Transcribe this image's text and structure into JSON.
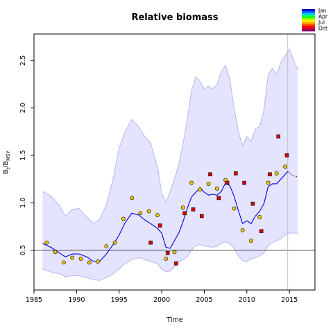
{
  "chart_data": {
    "type": "line",
    "title": "Relative biomass",
    "xlabel": "Time",
    "ylabel_main": "B",
    "ylabel_sub1": "t",
    "ylabel_mid": "/B",
    "ylabel_sub2": "MSY",
    "xlim": [
      1985,
      2018
    ],
    "ylim": [
      0.08,
      2.78
    ],
    "x_ticks": [
      1985,
      1990,
      1995,
      2000,
      2005,
      2010,
      2015
    ],
    "x_tick_labels": [
      "1985",
      "1990",
      "1995",
      "2000",
      "2005",
      "2010",
      "2015"
    ],
    "y_ticks": [
      0.5,
      1.0,
      1.5,
      2.0,
      2.5
    ],
    "y_tick_labels": [
      "0.5",
      "1.0",
      "1.5",
      "2.0",
      "2.5"
    ],
    "reference_line": 0.5,
    "vertical_line_x": 2014.8,
    "grid": false,
    "legend_position": "top-right",
    "legend": {
      "labels": [
        "Jan",
        "Apr",
        "Jul",
        "Oct"
      ],
      "colors": [
        "#0000CC",
        "#0055FF",
        "#00BBFF",
        "#00FF88",
        "#22FF00",
        "#AAFF00",
        "#FFEE00",
        "#FFAA00",
        "#FF5500",
        "#FF0000",
        "#CC0033",
        "#880066"
      ]
    },
    "colors": {
      "band_fill": "#E4E4FF",
      "band_edge": "#A8A8F0",
      "median_line": "#0000DD",
      "point_yellow": "#F0C800",
      "point_red": "#DD0000",
      "ref_line": "#555555",
      "vline": "#BBBBBB"
    },
    "band": {
      "x": [
        1986.0,
        1987.0,
        1988.0,
        1988.7,
        1989.5,
        1990.3,
        1991.2,
        1992.0,
        1992.7,
        1993.5,
        1994.3,
        1995.0,
        1995.7,
        1996.5,
        1997.3,
        1998.0,
        1998.7,
        1999.5,
        2000.0,
        2000.5,
        2001.0,
        2001.5,
        2002.0,
        2002.5,
        2003.0,
        2003.5,
        2004.0,
        2004.5,
        2005.0,
        2005.5,
        2006.0,
        2006.5,
        2007.0,
        2007.5,
        2008.0,
        2008.5,
        2009.0,
        2009.5,
        2010.0,
        2010.5,
        2011.0,
        2011.5,
        2012.0,
        2012.5,
        2013.0,
        2013.5,
        2014.0,
        2014.5,
        2015.0,
        2015.5,
        2016.0
      ],
      "upper": [
        1.12,
        1.07,
        0.97,
        0.86,
        0.93,
        0.94,
        0.85,
        0.78,
        0.82,
        0.98,
        1.25,
        1.58,
        1.75,
        1.88,
        1.8,
        1.7,
        1.63,
        1.38,
        1.1,
        1.0,
        1.12,
        1.25,
        1.4,
        1.62,
        1.88,
        2.18,
        2.33,
        2.28,
        2.2,
        2.23,
        2.2,
        2.25,
        2.38,
        2.45,
        2.3,
        2.0,
        1.75,
        1.6,
        1.7,
        1.65,
        1.78,
        1.8,
        1.98,
        2.35,
        2.42,
        2.35,
        2.48,
        2.55,
        2.62,
        2.5,
        2.4
      ],
      "lower": [
        0.3,
        0.27,
        0.25,
        0.22,
        0.23,
        0.23,
        0.21,
        0.19,
        0.18,
        0.21,
        0.25,
        0.3,
        0.36,
        0.4,
        0.42,
        0.4,
        0.38,
        0.36,
        0.3,
        0.27,
        0.28,
        0.33,
        0.38,
        0.4,
        0.43,
        0.5,
        0.55,
        0.56,
        0.54,
        0.54,
        0.53,
        0.54,
        0.57,
        0.59,
        0.57,
        0.52,
        0.44,
        0.39,
        0.38,
        0.41,
        0.42,
        0.44,
        0.47,
        0.55,
        0.58,
        0.6,
        0.62,
        0.66,
        0.68,
        0.68,
        0.68
      ]
    },
    "median": {
      "x": [
        1986.0,
        1987.0,
        1988.0,
        1988.7,
        1989.5,
        1990.3,
        1991.2,
        1992.0,
        1992.7,
        1993.5,
        1994.3,
        1995.0,
        1995.7,
        1996.5,
        1997.3,
        1998.0,
        1998.7,
        1999.5,
        2000.0,
        2000.5,
        2001.0,
        2001.5,
        2002.0,
        2002.5,
        2003.0,
        2003.5,
        2004.0,
        2004.5,
        2005.0,
        2005.5,
        2006.0,
        2006.5,
        2007.0,
        2007.5,
        2008.0,
        2008.5,
        2009.0,
        2009.5,
        2010.0,
        2010.5,
        2011.0,
        2011.5,
        2012.0,
        2012.5,
        2013.0,
        2013.5,
        2014.0,
        2014.5,
        2014.8
      ],
      "y": [
        0.57,
        0.53,
        0.47,
        0.43,
        0.46,
        0.46,
        0.43,
        0.38,
        0.38,
        0.46,
        0.56,
        0.66,
        0.79,
        0.89,
        0.87,
        0.82,
        0.78,
        0.73,
        0.68,
        0.53,
        0.52,
        0.6,
        0.68,
        0.8,
        0.94,
        1.06,
        1.11,
        1.16,
        1.11,
        1.08,
        1.09,
        1.08,
        1.12,
        1.21,
        1.18,
        1.07,
        0.92,
        0.78,
        0.81,
        0.78,
        0.86,
        0.91,
        0.99,
        1.17,
        1.2,
        1.2,
        1.25,
        1.3,
        1.33
      ]
    },
    "projection": {
      "x": [
        2014.8,
        2015.3,
        2016.0
      ],
      "y": [
        1.33,
        1.29,
        1.27
      ]
    },
    "points": [
      {
        "x": 1986.5,
        "y": 0.58,
        "c": "yellow"
      },
      {
        "x": 1987.5,
        "y": 0.48,
        "c": "yellow"
      },
      {
        "x": 1988.5,
        "y": 0.37,
        "c": "yellow"
      },
      {
        "x": 1989.5,
        "y": 0.42,
        "c": "yellow"
      },
      {
        "x": 1990.5,
        "y": 0.41,
        "c": "yellow"
      },
      {
        "x": 1991.5,
        "y": 0.37,
        "c": "yellow"
      },
      {
        "x": 1992.5,
        "y": 0.38,
        "c": "yellow"
      },
      {
        "x": 1993.5,
        "y": 0.54,
        "c": "yellow"
      },
      {
        "x": 1994.5,
        "y": 0.58,
        "c": "yellow"
      },
      {
        "x": 1995.5,
        "y": 0.83,
        "c": "yellow"
      },
      {
        "x": 1996.5,
        "y": 1.05,
        "c": "yellow"
      },
      {
        "x": 1997.5,
        "y": 0.89,
        "c": "yellow"
      },
      {
        "x": 1998.5,
        "y": 0.91,
        "c": "yellow"
      },
      {
        "x": 1998.7,
        "y": 0.58,
        "c": "red"
      },
      {
        "x": 1999.5,
        "y": 0.87,
        "c": "yellow"
      },
      {
        "x": 1999.8,
        "y": 0.76,
        "c": "red"
      },
      {
        "x": 2000.5,
        "y": 0.41,
        "c": "yellow"
      },
      {
        "x": 2000.7,
        "y": 0.47,
        "c": "red"
      },
      {
        "x": 2001.5,
        "y": 0.48,
        "c": "yellow"
      },
      {
        "x": 2001.7,
        "y": 0.36,
        "c": "red"
      },
      {
        "x": 2002.5,
        "y": 0.95,
        "c": "yellow"
      },
      {
        "x": 2002.7,
        "y": 0.89,
        "c": "red"
      },
      {
        "x": 2003.5,
        "y": 1.21,
        "c": "yellow"
      },
      {
        "x": 2003.7,
        "y": 0.93,
        "c": "red"
      },
      {
        "x": 2004.5,
        "y": 1.14,
        "c": "yellow"
      },
      {
        "x": 2004.7,
        "y": 0.86,
        "c": "red"
      },
      {
        "x": 2005.5,
        "y": 1.2,
        "c": "yellow"
      },
      {
        "x": 2005.7,
        "y": 1.3,
        "c": "red"
      },
      {
        "x": 2006.5,
        "y": 1.15,
        "c": "yellow"
      },
      {
        "x": 2006.7,
        "y": 1.05,
        "c": "red"
      },
      {
        "x": 2007.5,
        "y": 1.24,
        "c": "yellow"
      },
      {
        "x": 2007.7,
        "y": 1.21,
        "c": "red"
      },
      {
        "x": 2008.5,
        "y": 0.94,
        "c": "yellow"
      },
      {
        "x": 2008.7,
        "y": 1.31,
        "c": "red"
      },
      {
        "x": 2009.5,
        "y": 0.71,
        "c": "yellow"
      },
      {
        "x": 2009.7,
        "y": 1.21,
        "c": "red"
      },
      {
        "x": 2010.5,
        "y": 0.6,
        "c": "yellow"
      },
      {
        "x": 2010.7,
        "y": 0.99,
        "c": "red"
      },
      {
        "x": 2011.5,
        "y": 0.85,
        "c": "yellow"
      },
      {
        "x": 2011.7,
        "y": 0.7,
        "c": "red"
      },
      {
        "x": 2012.5,
        "y": 1.21,
        "c": "yellow"
      },
      {
        "x": 2012.7,
        "y": 1.3,
        "c": "red"
      },
      {
        "x": 2013.5,
        "y": 1.31,
        "c": "yellow"
      },
      {
        "x": 2013.7,
        "y": 1.7,
        "c": "red"
      },
      {
        "x": 2014.5,
        "y": 1.38,
        "c": "yellow"
      },
      {
        "x": 2014.7,
        "y": 1.5,
        "c": "red"
      }
    ]
  }
}
